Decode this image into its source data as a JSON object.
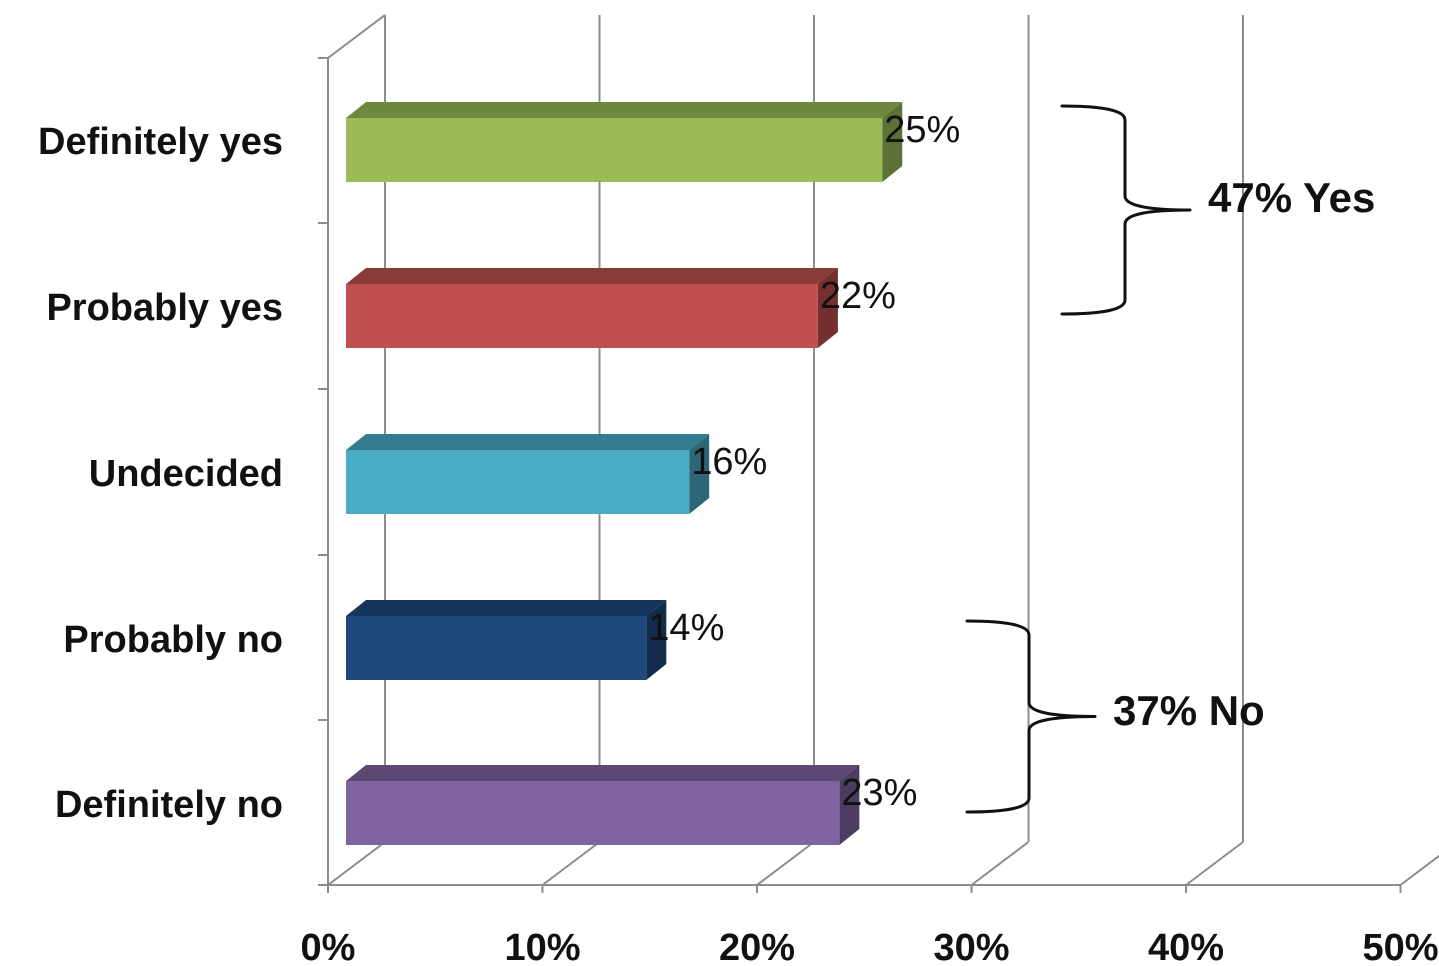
{
  "chart_data": {
    "type": "bar",
    "orientation": "horizontal",
    "style": "3d",
    "categories": [
      "Definitely yes",
      "Probably yes",
      "Undecided",
      "Probably no",
      "Definitely no"
    ],
    "values": [
      25,
      22,
      16,
      14,
      23
    ],
    "data_labels": [
      "25%",
      "22%",
      "16%",
      "14%",
      "23%"
    ],
    "colors": [
      "#9bbb59",
      "#c0504d",
      "#4bacc6",
      "#1f497d",
      "#8064a2"
    ],
    "xlim": [
      0,
      50
    ],
    "x_ticks": [
      0,
      10,
      20,
      30,
      40,
      50
    ],
    "x_tick_labels": [
      "0%",
      "10%",
      "20%",
      "30%",
      "40%",
      "50%"
    ],
    "grid": true,
    "legend": "none",
    "groups": [
      {
        "label": "47% Yes",
        "categories": [
          "Definitely yes",
          "Probably yes"
        ]
      },
      {
        "label": "37% No",
        "categories": [
          "Probably no",
          "Definitely no"
        ]
      }
    ]
  }
}
